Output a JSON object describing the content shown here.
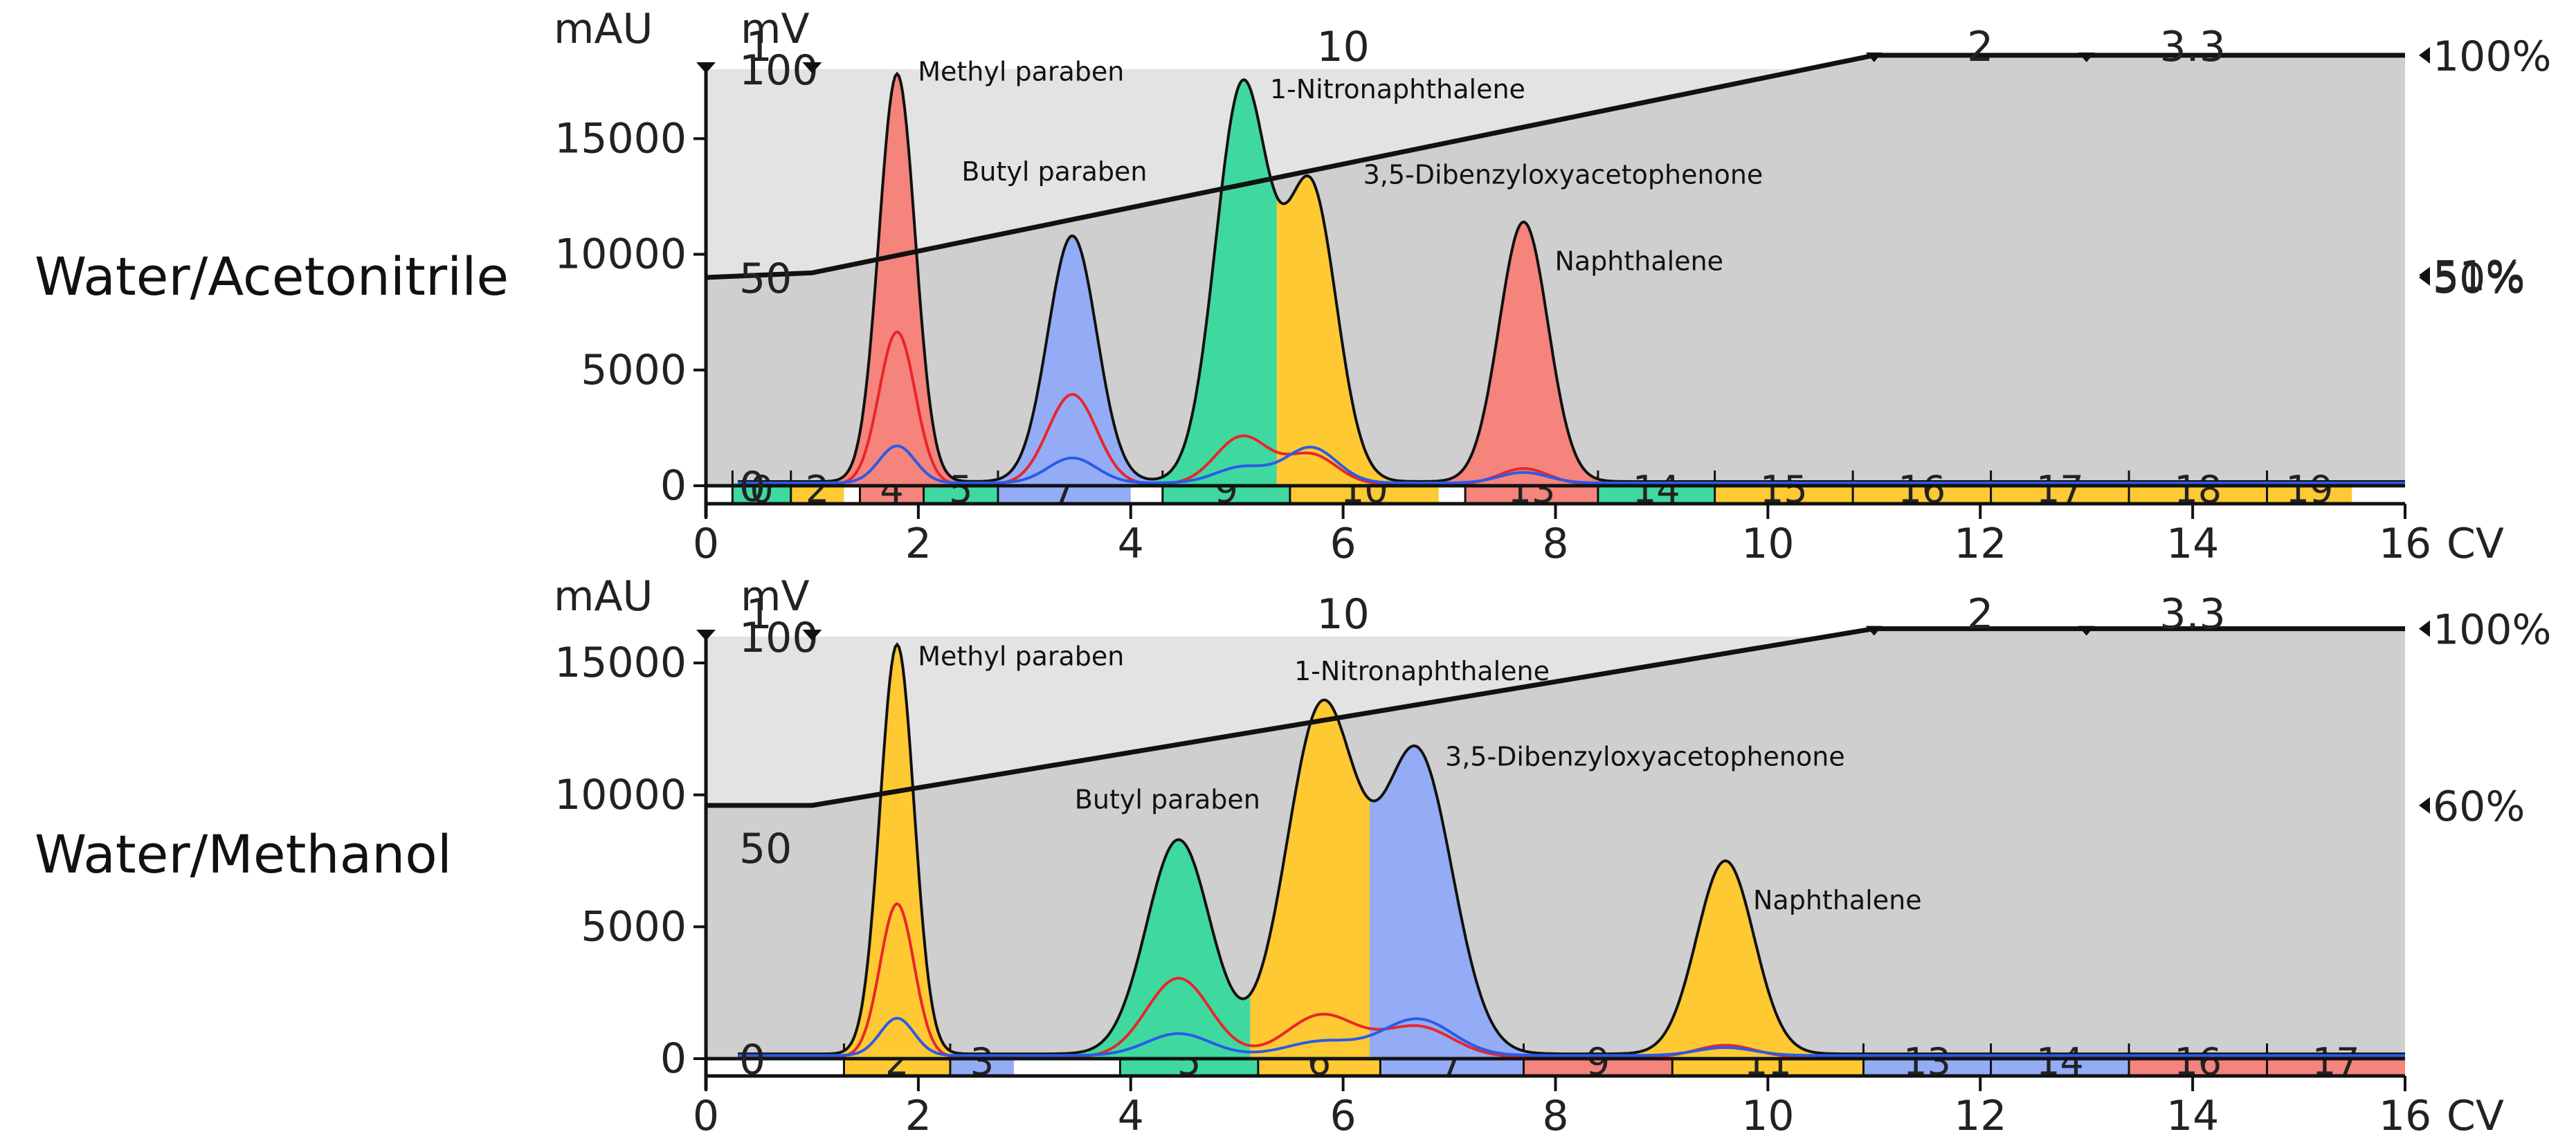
{
  "chart_data": [
    {
      "type": "line",
      "title": "Water/Acetonitrile",
      "xlabel": "CV",
      "ylabel_left": "mAU",
      "ylabel_mv": "mV",
      "xlim": [
        0,
        16
      ],
      "ylim": [
        0,
        18000
      ],
      "mv_ylim": [
        0,
        100
      ],
      "x_ticks": [
        0,
        2,
        4,
        6,
        8,
        10,
        12,
        14,
        16
      ],
      "y_ticks": [
        0,
        5000,
        10000,
        15000
      ],
      "mv_ticks": [
        0,
        50,
        100
      ],
      "top_labels": [
        {
          "x": 0.5,
          "text": "1"
        },
        {
          "x": 6.0,
          "text": "10"
        },
        {
          "x": 12.0,
          "text": "2"
        },
        {
          "x": 14.0,
          "text": "3.3"
        }
      ],
      "gradient": {
        "points": [
          [
            0,
            9000
          ],
          [
            1,
            9200
          ],
          [
            11,
            18600
          ],
          [
            16,
            18600
          ]
        ],
        "labels": [
          {
            "text": "100%",
            "y": 18600
          },
          {
            "text": "51%",
            "y": 9100
          },
          {
            "text": "50%",
            "y": 9000
          }
        ]
      },
      "peaks": [
        {
          "name": "Methyl paraben",
          "x": 1.8,
          "y": 17800,
          "color": "#f4847c",
          "label": "Methyl paraben"
        },
        {
          "name": "Butyl paraben",
          "x": 3.45,
          "y": 10800,
          "color": "#93acf5",
          "label": "Butyl paraben"
        },
        {
          "name": "1-Nitronaphthalene",
          "x": 5.05,
          "y": 17200,
          "color": "#3fd9a0",
          "label": "1-Nitronaphthalene"
        },
        {
          "name": "3,5-Dibenzyloxyacetophenone",
          "x": 5.7,
          "y": 12700,
          "color": "#ffc933",
          "label": "3,5-Dibenzyloxyacetophenone"
        },
        {
          "name": "Naphthalene",
          "x": 7.7,
          "y": 11400,
          "color": "#f4847c",
          "label": "Naphthalene"
        }
      ],
      "fractions": [
        {
          "label": "0",
          "x0": 0.25,
          "x1": 0.8,
          "color": "#3fd9a0"
        },
        {
          "label": "2",
          "x0": 0.8,
          "x1": 1.3,
          "color": "#ffc933"
        },
        {
          "label": "4",
          "x0": 1.45,
          "x1": 2.05,
          "color": "#f4847c"
        },
        {
          "label": "5",
          "x0": 2.05,
          "x1": 2.75,
          "color": "#3fd9a0"
        },
        {
          "label": "7",
          "x0": 2.75,
          "x1": 4.0,
          "color": "#93acf5"
        },
        {
          "label": "9",
          "x0": 4.3,
          "x1": 5.5,
          "color": "#3fd9a0"
        },
        {
          "label": "10",
          "x0": 5.5,
          "x1": 6.9,
          "color": "#ffc933"
        },
        {
          "label": "13",
          "x0": 7.15,
          "x1": 8.4,
          "color": "#f4847c"
        },
        {
          "label": "14",
          "x0": 8.4,
          "x1": 9.5,
          "color": "#3fd9a0"
        },
        {
          "label": "15",
          "x0": 9.5,
          "x1": 10.8,
          "color": "#ffc933"
        },
        {
          "label": "16",
          "x0": 10.8,
          "x1": 12.1,
          "color": "#ffc933"
        },
        {
          "label": "17",
          "x0": 12.1,
          "x1": 13.4,
          "color": "#ffc933"
        },
        {
          "label": "18",
          "x0": 13.4,
          "x1": 14.7,
          "color": "#ffc933"
        },
        {
          "label": "19",
          "x0": 14.7,
          "x1": 15.5,
          "color": "#ffc933"
        }
      ]
    },
    {
      "type": "line",
      "title": "Water/Methanol",
      "xlabel": "CV",
      "ylabel_left": "mAU",
      "ylabel_mv": "mV",
      "xlim": [
        0,
        16
      ],
      "ylim": [
        0,
        16000
      ],
      "mv_ylim": [
        0,
        100
      ],
      "x_ticks": [
        0,
        2,
        4,
        6,
        8,
        10,
        12,
        14,
        16
      ],
      "y_ticks": [
        0,
        5000,
        10000,
        15000
      ],
      "mv_ticks": [
        0,
        50,
        100
      ],
      "top_labels": [
        {
          "x": 0.5,
          "text": "1"
        },
        {
          "x": 6.0,
          "text": "10"
        },
        {
          "x": 12.0,
          "text": "2"
        },
        {
          "x": 14.0,
          "text": "3.3"
        }
      ],
      "gradient": {
        "points": [
          [
            0,
            9600
          ],
          [
            1,
            9600
          ],
          [
            11,
            16300
          ],
          [
            16,
            16300
          ]
        ],
        "labels": [
          {
            "text": "100%",
            "y": 16300
          },
          {
            "text": "60%",
            "y": 9600
          }
        ]
      },
      "peaks": [
        {
          "name": "Methyl paraben",
          "x": 1.8,
          "y": 15700,
          "color": "#ffc933",
          "label": "Methyl paraben"
        },
        {
          "name": "Butyl paraben",
          "x": 4.45,
          "y": 8300,
          "color": "#3fd9a0",
          "label": "Butyl paraben"
        },
        {
          "name": "1-Nitronaphthalene",
          "x": 5.8,
          "y": 13300,
          "color": "#ffc933",
          "label": "1-Nitronaphthalene"
        },
        {
          "name": "3,5-Dibenzyloxyacetophenone",
          "x": 6.7,
          "y": 11500,
          "color": "#93acf5",
          "label": "3,5-Dibenzyloxyacetophenone"
        },
        {
          "name": "Naphthalene",
          "x": 9.6,
          "y": 7500,
          "color": "#ffc933",
          "label": "Naphthalene"
        }
      ],
      "fractions": [
        {
          "label": "2",
          "x0": 1.3,
          "x1": 2.3,
          "color": "#ffc933"
        },
        {
          "label": "3",
          "x0": 2.3,
          "x1": 2.9,
          "color": "#93acf5"
        },
        {
          "label": "5",
          "x0": 3.9,
          "x1": 5.2,
          "color": "#3fd9a0"
        },
        {
          "label": "6",
          "x0": 5.2,
          "x1": 6.35,
          "color": "#ffc933"
        },
        {
          "label": "7",
          "x0": 6.35,
          "x1": 7.7,
          "color": "#93acf5"
        },
        {
          "label": "9",
          "x0": 7.7,
          "x1": 9.1,
          "color": "#f4847c"
        },
        {
          "label": "11",
          "x0": 9.1,
          "x1": 10.9,
          "color": "#ffc933"
        },
        {
          "label": "13",
          "x0": 10.9,
          "x1": 12.1,
          "color": "#93acf5"
        },
        {
          "label": "14",
          "x0": 12.1,
          "x1": 13.4,
          "color": "#93acf5"
        },
        {
          "label": "16",
          "x0": 13.4,
          "x1": 14.7,
          "color": "#f4847c"
        },
        {
          "label": "17",
          "x0": 14.7,
          "x1": 16.0,
          "color": "#f4847c"
        }
      ]
    }
  ]
}
